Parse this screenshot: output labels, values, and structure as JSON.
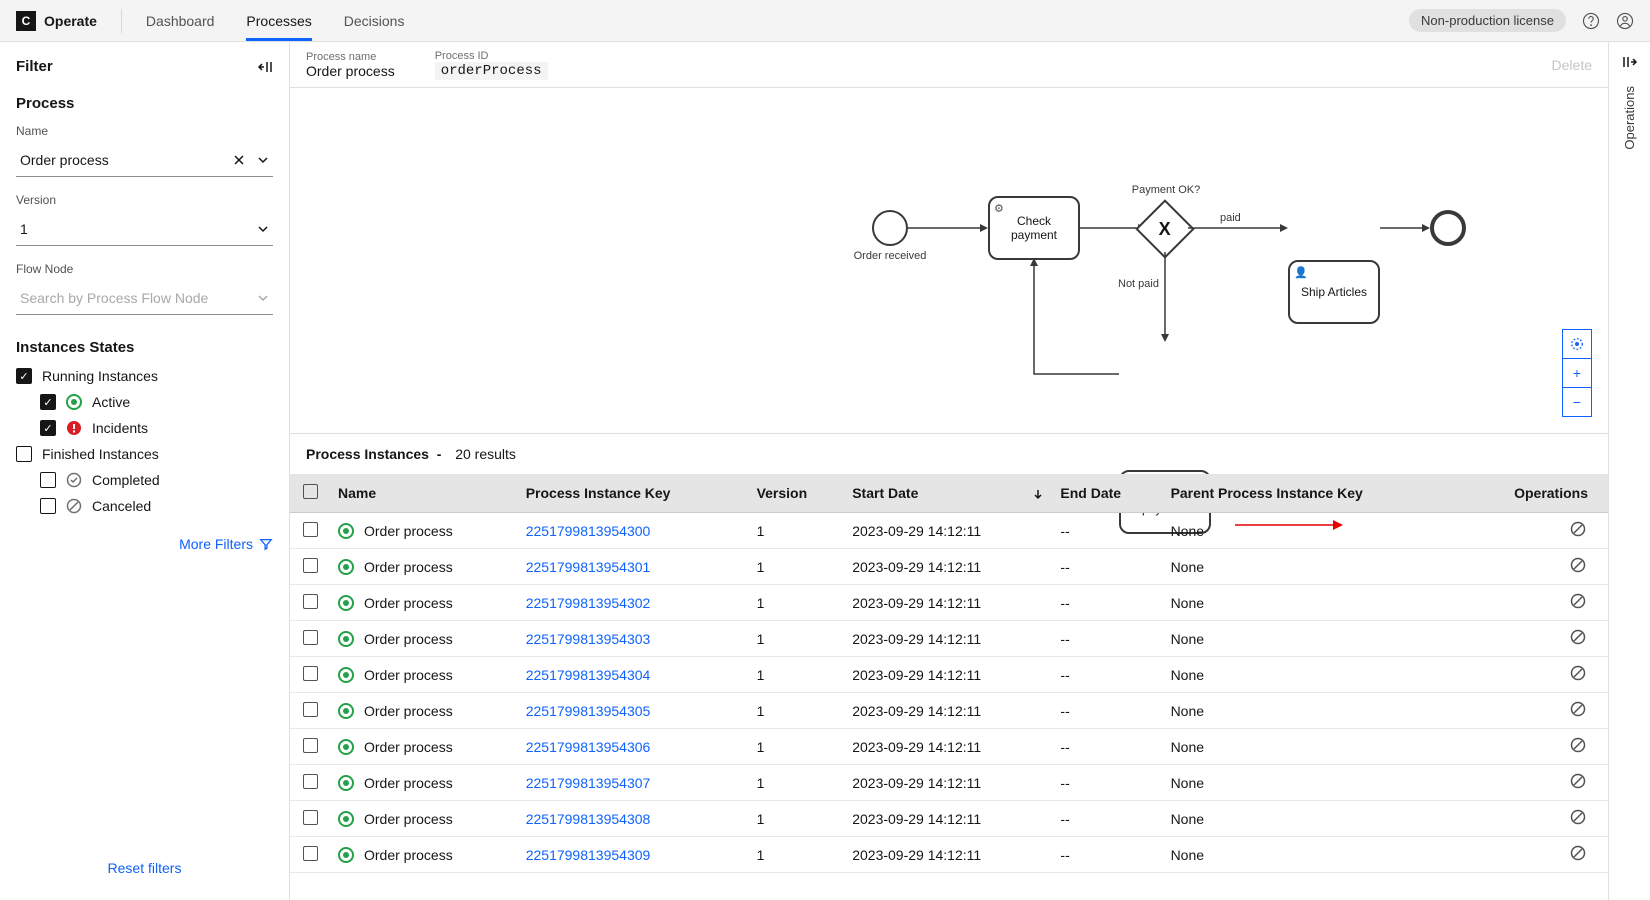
{
  "header": {
    "brand": "Operate",
    "nav": {
      "dashboard": "Dashboard",
      "processes": "Processes",
      "decisions": "Decisions"
    },
    "license": "Non-production license"
  },
  "sidebar": {
    "filter_title": "Filter",
    "process_section": "Process",
    "name_label": "Name",
    "name_value": "Order process",
    "version_label": "Version",
    "version_value": "1",
    "flownode_label": "Flow Node",
    "flownode_placeholder": "Search by Process Flow Node",
    "states_section": "Instances States",
    "running": "Running Instances",
    "active": "Active",
    "incidents": "Incidents",
    "finished": "Finished Instances",
    "completed": "Completed",
    "canceled": "Canceled",
    "more_filters": "More Filters",
    "reset_filters": "Reset filters"
  },
  "content_header": {
    "name_label": "Process name",
    "name_value": "Order process",
    "id_label": "Process ID",
    "id_value": "orderProcess",
    "delete": "Delete"
  },
  "diagram": {
    "start_label": "Order received",
    "task1": "Check payment",
    "gateway_label": "Payment OK?",
    "edge_paid": "paid",
    "edge_notpaid": "Not paid",
    "task2": "Ship Articles",
    "task3": "Request for payment"
  },
  "right_rail": {
    "operations": "Operations"
  },
  "table": {
    "title": "Process Instances",
    "count": "20 results",
    "cols": {
      "name": "Name",
      "key": "Process Instance Key",
      "version": "Version",
      "start": "Start Date",
      "end": "End Date",
      "parent": "Parent Process Instance Key",
      "ops": "Operations"
    },
    "rows": [
      {
        "name": "Order process",
        "key": "2251799813954300",
        "version": "1",
        "start": "2023-09-29 14:12:11",
        "end": "--",
        "parent": "None"
      },
      {
        "name": "Order process",
        "key": "2251799813954301",
        "version": "1",
        "start": "2023-09-29 14:12:11",
        "end": "--",
        "parent": "None"
      },
      {
        "name": "Order process",
        "key": "2251799813954302",
        "version": "1",
        "start": "2023-09-29 14:12:11",
        "end": "--",
        "parent": "None"
      },
      {
        "name": "Order process",
        "key": "2251799813954303",
        "version": "1",
        "start": "2023-09-29 14:12:11",
        "end": "--",
        "parent": "None"
      },
      {
        "name": "Order process",
        "key": "2251799813954304",
        "version": "1",
        "start": "2023-09-29 14:12:11",
        "end": "--",
        "parent": "None"
      },
      {
        "name": "Order process",
        "key": "2251799813954305",
        "version": "1",
        "start": "2023-09-29 14:12:11",
        "end": "--",
        "parent": "None"
      },
      {
        "name": "Order process",
        "key": "2251799813954306",
        "version": "1",
        "start": "2023-09-29 14:12:11",
        "end": "--",
        "parent": "None"
      },
      {
        "name": "Order process",
        "key": "2251799813954307",
        "version": "1",
        "start": "2023-09-29 14:12:11",
        "end": "--",
        "parent": "None"
      },
      {
        "name": "Order process",
        "key": "2251799813954308",
        "version": "1",
        "start": "2023-09-29 14:12:11",
        "end": "--",
        "parent": "None"
      },
      {
        "name": "Order process",
        "key": "2251799813954309",
        "version": "1",
        "start": "2023-09-29 14:12:11",
        "end": "--",
        "parent": "None"
      }
    ]
  },
  "colors": {
    "primary": "#0f62fe",
    "green": "#24a148",
    "red": "#da1e28"
  }
}
